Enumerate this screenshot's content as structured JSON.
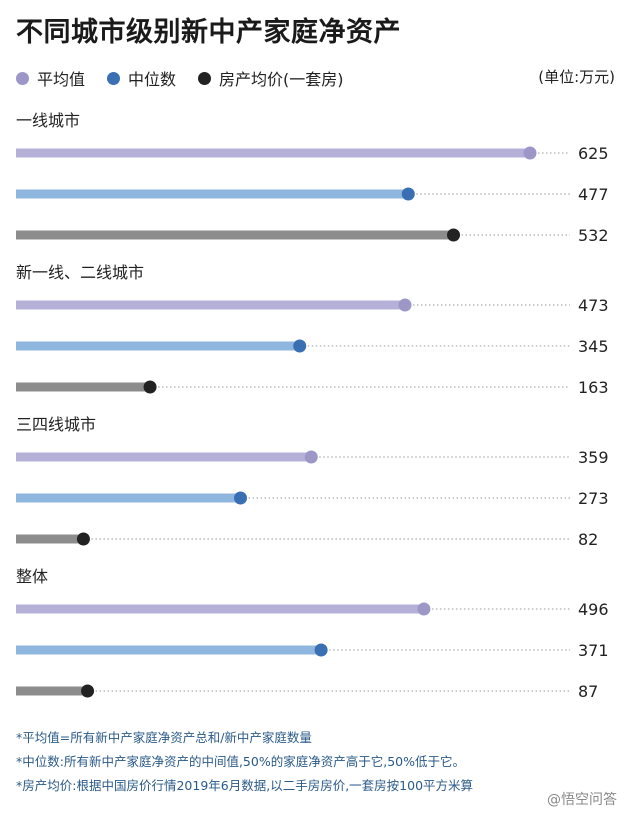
{
  "title": "不同城市级别新中产家庭净资产",
  "unit": "(单位:万元)",
  "legend": [
    {
      "label": "平均值",
      "color": "#9d97c8"
    },
    {
      "label": "中位数",
      "color": "#3a6fb3"
    },
    {
      "label": "房产均价(一套房)",
      "color": "#222222"
    }
  ],
  "chart_data": {
    "type": "bar",
    "orientation": "horizontal",
    "xlim": [
      0,
      700
    ],
    "series_names": [
      "平均值",
      "中位数",
      "房产均价(一套房)"
    ],
    "series_colors": [
      "#9d97c8",
      "#3a6fb3",
      "#222222"
    ],
    "bar_colors": [
      "#b4b0d8",
      "#8fb6df",
      "#8c8c8c"
    ],
    "groups": [
      {
        "name": "一线城市",
        "values": [
          625,
          477,
          532
        ]
      },
      {
        "name": "新一线、二线城市",
        "values": [
          473,
          345,
          163
        ]
      },
      {
        "name": "三四线城市",
        "values": [
          359,
          273,
          82
        ]
      },
      {
        "name": "整体",
        "values": [
          496,
          371,
          87
        ]
      }
    ]
  },
  "notes": [
    "*平均值=所有新中产家庭净资产总和/新中产家庭数量",
    "*中位数:所有新中产家庭净资产的中间值,50%的家庭净资产高于它,50%低于它。",
    "*房产均价:根据中国房价行情2019年6月数据,以二手房房价,一套房按100平方米算"
  ],
  "watermark": "@悟空问答"
}
